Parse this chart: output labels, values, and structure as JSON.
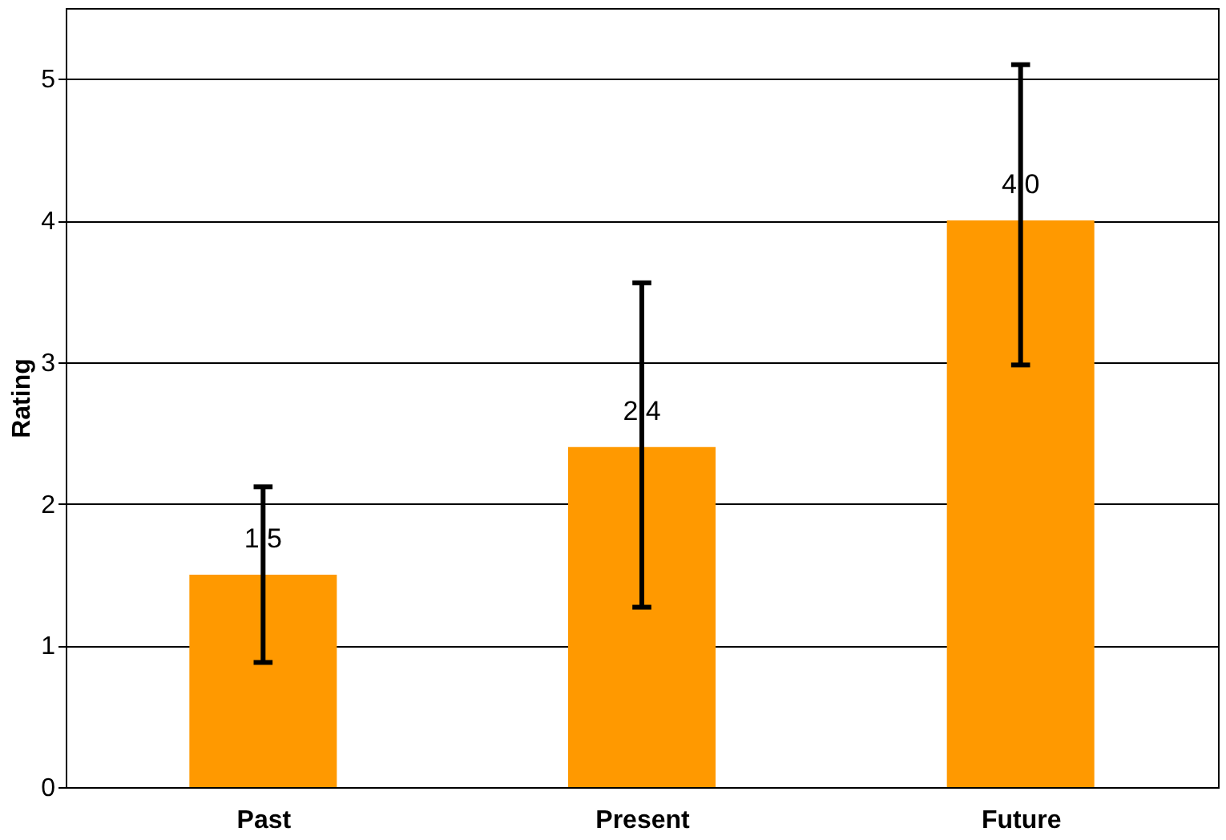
{
  "chart_data": {
    "type": "bar",
    "ylabel": "Rating",
    "categories": [
      "Past",
      "Present",
      "Future"
    ],
    "values": [
      1.5,
      2.4,
      4.0
    ],
    "value_labels": [
      "1.5",
      "2.4",
      "4.0"
    ],
    "errors": [
      [
        0.88,
        2.12
      ],
      [
        1.27,
        3.56
      ],
      [
        2.98,
        5.1
      ]
    ],
    "color": "#ff9900",
    "ylim": [
      0,
      5.5
    ],
    "yticks": [
      0,
      1,
      2,
      3,
      4,
      5
    ],
    "grid": "y"
  }
}
